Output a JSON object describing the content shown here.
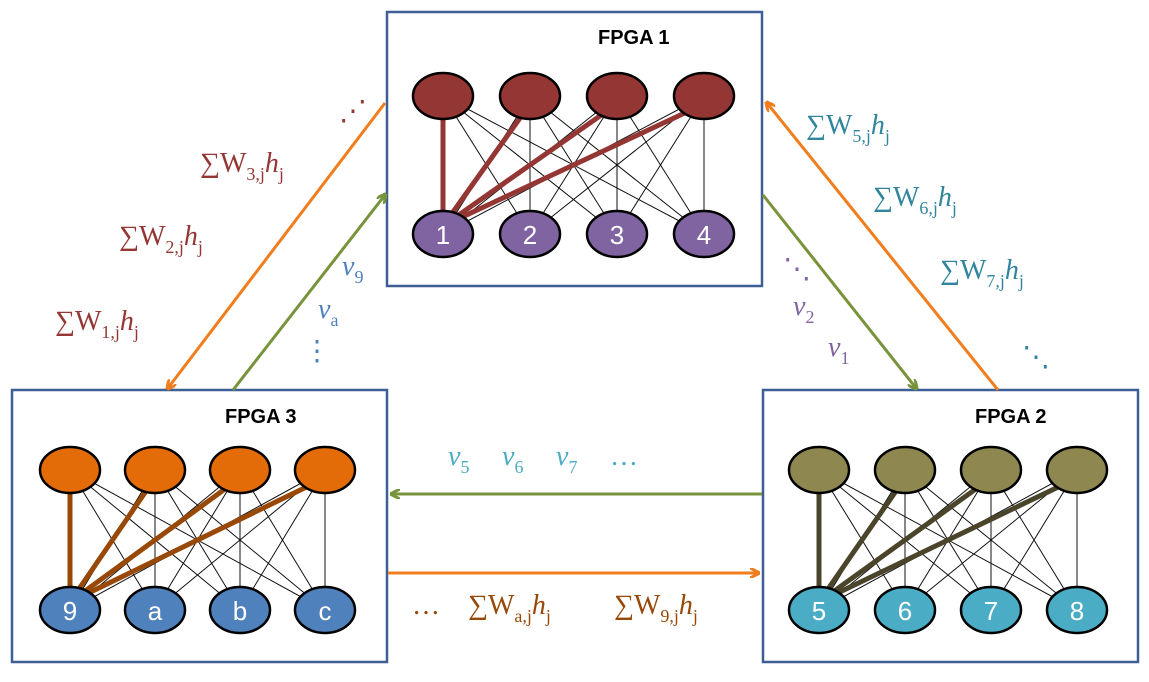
{
  "fpga_boxes": [
    {
      "id": "fpga1",
      "title": "FPGA 1",
      "top_nodes_color": "#943634",
      "bottom_nodes_color": "#8064a2",
      "highlight_color": "#943634",
      "bottom_labels": [
        "1",
        "2",
        "3",
        "4"
      ]
    },
    {
      "id": "fpga2",
      "title": "FPGA 2",
      "top_nodes_color": "#8e8750",
      "bottom_nodes_color": "#4bacc6",
      "highlight_color": "#4a452a",
      "bottom_labels": [
        "5",
        "6",
        "7",
        "8"
      ]
    },
    {
      "id": "fpga3",
      "title": "FPGA 3",
      "top_nodes_color": "#e36c09",
      "bottom_nodes_color": "#4f81bd",
      "highlight_color": "#984807",
      "bottom_labels": [
        "9",
        "a",
        "b",
        "c"
      ]
    }
  ],
  "arrow_colors": {
    "orange": "#f07d1e",
    "green": "#77933c"
  },
  "labels": {
    "fpga3_to_fpga1_sums": [
      {
        "sub": "3,j",
        "color": "#943634"
      },
      {
        "sub": "2,j",
        "color": "#943634"
      },
      {
        "sub": "1,j",
        "color": "#943634"
      }
    ],
    "fpga3_to_fpga1_dots": "⋰",
    "fpga3_v_labels": [
      {
        "text": "v",
        "sub": "9",
        "color": "#4f81bd"
      },
      {
        "text": "v",
        "sub": "a",
        "color": "#4f81bd"
      }
    ],
    "fpga3_v_dots": "⋮",
    "fpga1_v_dots": "⋱",
    "fpga1_v_labels": [
      {
        "text": "v",
        "sub": "2",
        "color": "#8064a2"
      },
      {
        "text": "v",
        "sub": "1",
        "color": "#8064a2"
      }
    ],
    "fpga2_sums": [
      {
        "sub": "5,j",
        "color": "#31859c"
      },
      {
        "sub": "6,j",
        "color": "#31859c"
      },
      {
        "sub": "7,j",
        "color": "#31859c"
      }
    ],
    "fpga2_dots": "⋱",
    "bottom_v_labels": [
      {
        "text": "v",
        "sub": "5",
        "color": "#4bacc6"
      },
      {
        "text": "v",
        "sub": "6",
        "color": "#4bacc6"
      },
      {
        "text": "v",
        "sub": "7",
        "color": "#4bacc6"
      }
    ],
    "bottom_v_dots": "…",
    "bottom_sum_dots": "…",
    "bottom_sums": [
      {
        "sub": "a,j",
        "color": "#984807"
      },
      {
        "sub": "9,j",
        "color": "#984807"
      }
    ],
    "sum_symbol": "∑W",
    "h_symbol": "h",
    "h_sub": "j"
  }
}
